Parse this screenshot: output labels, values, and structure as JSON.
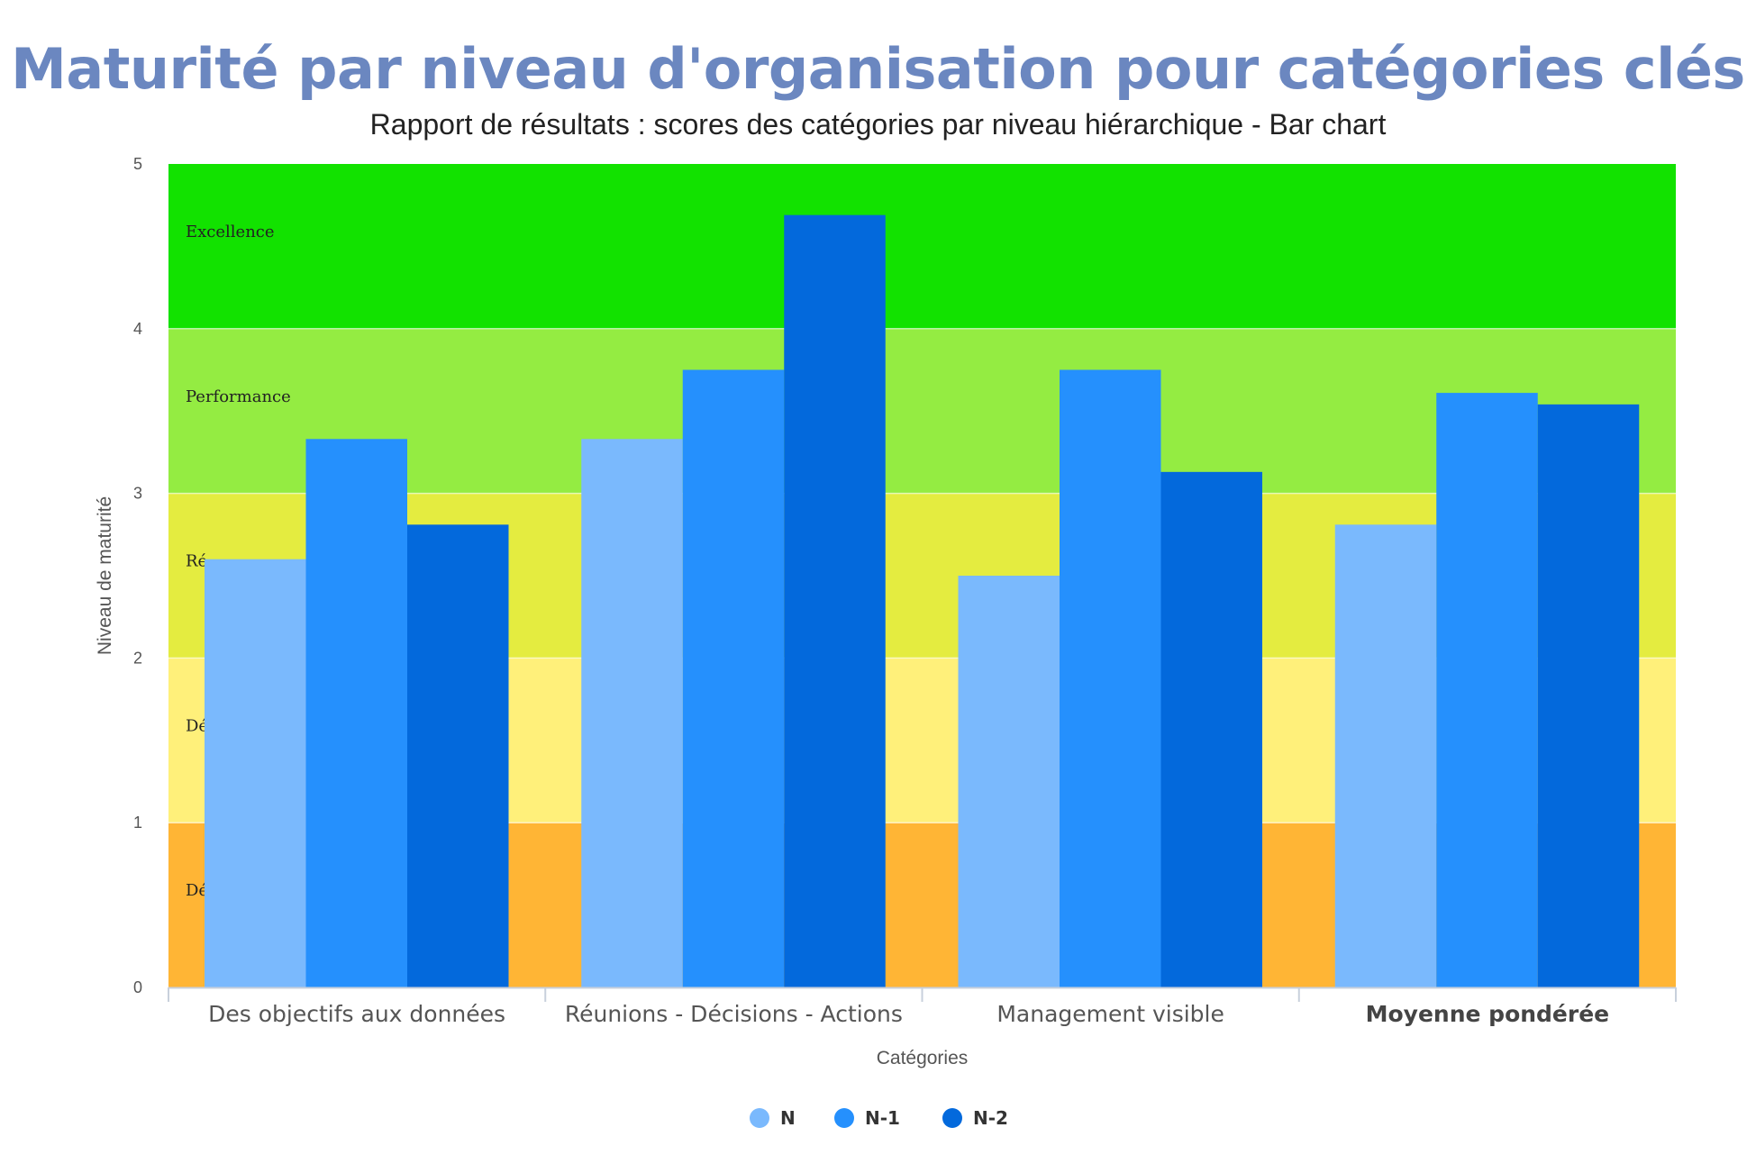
{
  "title": "Maturité par niveau d'organisation pour catégories clés",
  "subtitle": "Rapport de résultats : scores des catégories par niveau hiérarchique - Bar chart",
  "chart_data": {
    "type": "bar",
    "categories": [
      "Des objectifs aux données",
      "Réunions - Décisions - Actions",
      "Management visible",
      "Moyenne pondérée"
    ],
    "series": [
      {
        "name": "N",
        "color": "#7ab9fd",
        "values": [
          2.6,
          3.33,
          2.5,
          2.81
        ]
      },
      {
        "name": "N-1",
        "color": "#2590fd",
        "values": [
          3.33,
          3.75,
          3.75,
          3.61
        ]
      },
      {
        "name": "N-2",
        "color": "#0369dc",
        "values": [
          2.81,
          4.69,
          3.13,
          3.54
        ]
      }
    ],
    "xlabel": "Catégories",
    "ylabel": "Niveau de maturité",
    "ylim": [
      0,
      5
    ],
    "yticks": [
      "0",
      "1",
      "2",
      "3",
      "4",
      "5"
    ],
    "bands": [
      {
        "from": 0,
        "to": 1,
        "color": "#ffb535",
        "label": "Dé"
      },
      {
        "from": 1,
        "to": 2,
        "color": "#fff07a",
        "label": "Dé"
      },
      {
        "from": 2,
        "to": 3,
        "color": "#e4ec40",
        "label": "Ré"
      },
      {
        "from": 3,
        "to": 4,
        "color": "#94ec42",
        "label": "Performance"
      },
      {
        "from": 4,
        "to": 5,
        "color": "#12e200",
        "label": "Excellence"
      }
    ],
    "bold_categories": [
      "Moyenne pondérée"
    ],
    "legend": "bottom-center"
  }
}
